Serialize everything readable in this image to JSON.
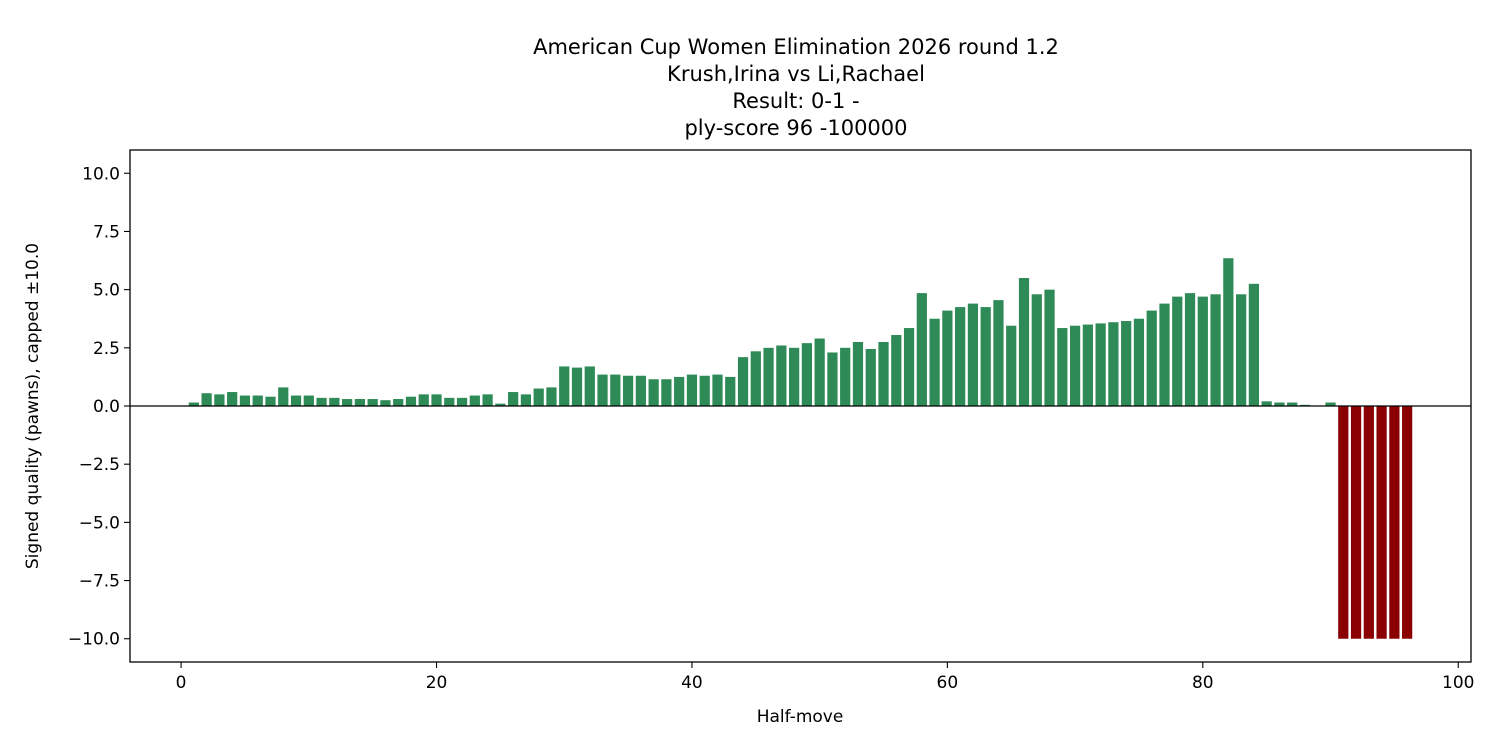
{
  "chart_data": {
    "type": "bar",
    "title": "American Cup Women Elimination 2026  round 1.2",
    "title_lines": [
      "American Cup Women Elimination 2026  round 1.2",
      "Krush,Irina vs Li,Rachael",
      "Result: 0-1 -",
      "ply-score 96 -100000"
    ],
    "xlabel": "Half-move",
    "ylabel": "Signed quality (pawns), capped ±10.0",
    "xlim": [
      -4,
      101
    ],
    "ylim": [
      -11,
      11
    ],
    "xticks": [
      0,
      20,
      40,
      60,
      80,
      100
    ],
    "xtick_labels": [
      "0",
      "20",
      "40",
      "60",
      "80",
      "100"
    ],
    "yticks": [
      10,
      7.5,
      5,
      2.5,
      0,
      -2.5,
      -5,
      -7.5,
      -10
    ],
    "ytick_labels": [
      "10.0",
      "7.5",
      "5.0",
      "2.5",
      "0.0",
      "−2.5",
      "−5.0",
      "−7.5",
      "−10.0"
    ],
    "positive_color": "#2e8b57",
    "negative_color": "#8b0000",
    "zero_line_color": "#000000",
    "x": [
      1,
      2,
      3,
      4,
      5,
      6,
      7,
      8,
      9,
      10,
      11,
      12,
      13,
      14,
      15,
      16,
      17,
      18,
      19,
      20,
      21,
      22,
      23,
      24,
      25,
      26,
      27,
      28,
      29,
      30,
      31,
      32,
      33,
      34,
      35,
      36,
      37,
      38,
      39,
      40,
      41,
      42,
      43,
      44,
      45,
      46,
      47,
      48,
      49,
      50,
      51,
      52,
      53,
      54,
      55,
      56,
      57,
      58,
      59,
      60,
      61,
      62,
      63,
      64,
      65,
      66,
      67,
      68,
      69,
      70,
      71,
      72,
      73,
      74,
      75,
      76,
      77,
      78,
      79,
      80,
      81,
      82,
      83,
      84,
      85,
      86,
      87,
      88,
      89,
      90,
      91,
      92,
      93,
      94,
      95,
      96
    ],
    "values": [
      0.15,
      0.55,
      0.5,
      0.6,
      0.45,
      0.45,
      0.4,
      0.8,
      0.45,
      0.45,
      0.35,
      0.35,
      0.3,
      0.3,
      0.3,
      0.25,
      0.3,
      0.4,
      0.5,
      0.5,
      0.35,
      0.35,
      0.45,
      0.5,
      0.1,
      0.6,
      0.5,
      0.75,
      0.8,
      1.7,
      1.65,
      1.7,
      1.35,
      1.35,
      1.3,
      1.3,
      1.15,
      1.15,
      1.25,
      1.35,
      1.3,
      1.35,
      1.25,
      2.1,
      2.35,
      2.5,
      2.6,
      2.5,
      2.7,
      2.9,
      2.3,
      2.5,
      2.75,
      2.45,
      2.75,
      3.05,
      3.35,
      4.85,
      3.75,
      4.1,
      4.25,
      4.4,
      4.25,
      4.55,
      3.45,
      5.5,
      4.8,
      5.0,
      3.35,
      3.45,
      3.5,
      3.55,
      3.6,
      3.65,
      3.75,
      4.1,
      4.4,
      4.7,
      4.85,
      4.7,
      4.8,
      6.35,
      4.8,
      5.25,
      0.2,
      0.15,
      0.15,
      0.05,
      0.0,
      0.15,
      -10.0,
      -10.0,
      -10.0,
      -10.0,
      -10.0,
      -10.0
    ]
  }
}
